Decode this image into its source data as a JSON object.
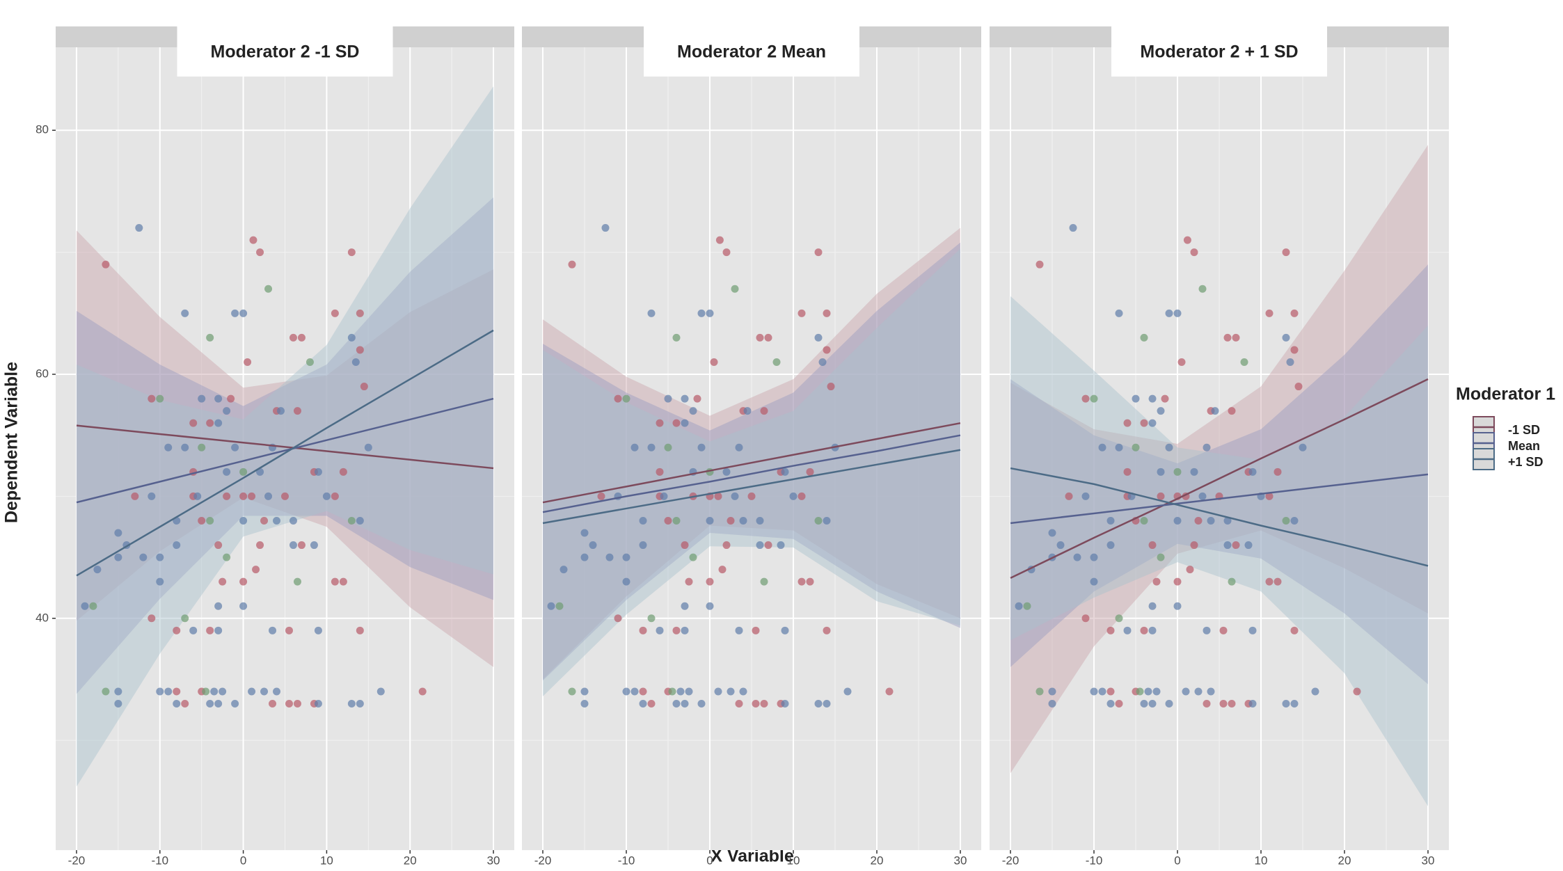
{
  "chart_data": {
    "type": "line",
    "x_label": "X Variable",
    "y_label": "Dependent Variable",
    "legend_title": "Moderator 1",
    "xlim": [
      -22.5,
      32.5
    ],
    "xticks": [
      -20,
      -10,
      0,
      10,
      20,
      30
    ],
    "ylim": [
      21,
      86.8
    ],
    "yticks": [
      40,
      60,
      80
    ],
    "grid": true,
    "x": [
      -20,
      -10,
      0,
      10,
      20,
      30
    ],
    "points": [
      {
        "color": "#b85a68",
        "x": [
          1.2,
          2,
          13,
          -16.5,
          11,
          14,
          6,
          7,
          14,
          0.5,
          14.5,
          -11,
          -1.5,
          4,
          6.5,
          -4,
          -6,
          -6,
          8.5,
          12,
          -13,
          -6,
          -2,
          0,
          1,
          5,
          11,
          -5,
          2.5,
          -3,
          2,
          7,
          1.5,
          -2.5,
          0,
          11,
          12,
          -11,
          -8,
          -4,
          5.5,
          14,
          -8,
          -5,
          21.5,
          -7,
          3.5,
          5.5,
          6.5,
          8.5
        ],
        "y": [
          71,
          70,
          70,
          69,
          65,
          65,
          63,
          63,
          62,
          61,
          59,
          58,
          58,
          57,
          57,
          56,
          56,
          52,
          52,
          52,
          50,
          50,
          50,
          50,
          50,
          50,
          50,
          48,
          48,
          46,
          46,
          46,
          44,
          43,
          43,
          43,
          43,
          40,
          39,
          39,
          39,
          39,
          34,
          34,
          34,
          33,
          33,
          33,
          33,
          33
        ]
      },
      {
        "color": "#5f7eaa",
        "x": [
          -12.5,
          -7,
          0,
          -1,
          13,
          13.5,
          -5,
          -3,
          4.5,
          -2,
          -3,
          -9,
          -7,
          -1,
          3.5,
          15,
          2,
          -2,
          9,
          -11,
          -5.5,
          3,
          10,
          -8,
          0,
          4,
          6,
          14,
          -15,
          -14,
          -8,
          6,
          8.5,
          -15,
          -12,
          -10,
          -17.5,
          -10,
          -19,
          -3,
          0,
          -6,
          -3,
          3.5,
          9,
          -15,
          -10,
          -9,
          -3.5,
          -2.5,
          1,
          2.5,
          4,
          16.5,
          -15,
          -8,
          -4,
          -3,
          -1,
          9,
          13,
          14
        ],
        "y": [
          72,
          65,
          65,
          65,
          63,
          61,
          58,
          58,
          57,
          57,
          56,
          54,
          54,
          54,
          54,
          54,
          52,
          52,
          52,
          50,
          50,
          50,
          50,
          48,
          48,
          48,
          48,
          48,
          47,
          46,
          46,
          46,
          46,
          45,
          45,
          45,
          44,
          43,
          41,
          41,
          41,
          39,
          39,
          39,
          39,
          34,
          34,
          34,
          34,
          34,
          34,
          34,
          34,
          34,
          33,
          33,
          33,
          33,
          33,
          33,
          33,
          33
        ]
      },
      {
        "color": "#6f9c72",
        "x": [
          3,
          -4,
          8,
          -10,
          -5,
          0,
          -4,
          13,
          -2,
          6.5,
          -18,
          -7,
          -16.5,
          -4.5
        ],
        "y": [
          67,
          63,
          61,
          58,
          54,
          52,
          48,
          48,
          45,
          43,
          41,
          40,
          34,
          34
        ]
      }
    ],
    "panels": [
      {
        "title": "Moderator 2 -1 SD",
        "series": [
          {
            "name": "-1 SD",
            "color": "#7d4a5c",
            "fill": "#c9a3ab",
            "values": [
              55.8,
              55.1,
              54.4,
              53.7,
              53.0,
              52.3
            ],
            "upper": [
              71.8,
              64.7,
              58.9,
              59.9,
              65.1,
              68.6
            ],
            "lower": [
              39.8,
              45.5,
              49.9,
              47.5,
              40.9,
              36.0
            ]
          },
          {
            "name": "Mean",
            "color": "#56618f",
            "fill": "#9a9cc0",
            "values": [
              49.5,
              51.2,
              52.9,
              54.6,
              56.3,
              58.0
            ],
            "upper": [
              65.2,
              60.8,
              57.4,
              60.8,
              68.4,
              74.5
            ],
            "lower": [
              33.8,
              41.6,
              48.4,
              48.4,
              44.2,
              41.5
            ]
          },
          {
            "name": "+1 SD",
            "color": "#4c6b86",
            "fill": "#a9c1cd",
            "values": [
              43.5,
              47.5,
              51.5,
              55.6,
              59.6,
              63.6
            ],
            "upper": [
              60.8,
              57.9,
              56.3,
              62.4,
              73.6,
              83.6
            ],
            "lower": [
              26.2,
              37.1,
              46.7,
              48.8,
              45.6,
              43.6
            ]
          }
        ]
      },
      {
        "title": "Moderator 2 Mean",
        "series": [
          {
            "name": "-1 SD",
            "color": "#7d4a5c",
            "fill": "#c9a3ab",
            "values": [
              49.5,
              50.8,
              52.1,
              53.4,
              54.7,
              56.0
            ],
            "upper": [
              64.5,
              59.8,
              56.6,
              59.6,
              66.6,
              72.0
            ],
            "lower": [
              35.0,
              41.8,
              47.6,
              47.2,
              42.8,
              40.0
            ]
          },
          {
            "name": "Mean",
            "color": "#56618f",
            "fill": "#9a9cc0",
            "values": [
              48.7,
              50.0,
              51.2,
              52.5,
              53.7,
              55.0
            ],
            "upper": [
              62.5,
              58.5,
              55.4,
              58.5,
              65.2,
              70.8
            ],
            "lower": [
              34.9,
              41.5,
              47.0,
              46.5,
              42.2,
              39.2
            ]
          },
          {
            "name": "+1 SD",
            "color": "#4c6b86",
            "fill": "#a9c1cd",
            "values": [
              47.8,
              49.0,
              50.2,
              51.4,
              52.6,
              53.8
            ],
            "upper": [
              62.0,
              57.7,
              54.5,
              57.0,
              63.8,
              70.3
            ],
            "lower": [
              33.6,
              40.3,
              45.9,
              45.8,
              41.4,
              39.4
            ]
          }
        ]
      },
      {
        "title": "Moderator 2 + 1 SD",
        "series": [
          {
            "name": "-1 SD",
            "color": "#7d4a5c",
            "fill": "#c9a3ab",
            "values": [
              43.3,
              46.6,
              49.8,
              53.1,
              56.3,
              59.6
            ],
            "upper": [
              59.3,
              55.5,
              54.3,
              59.0,
              68.5,
              78.8
            ],
            "lower": [
              27.3,
              37.7,
              45.3,
              47.2,
              44.1,
              40.4
            ]
          },
          {
            "name": "Mean",
            "color": "#56618f",
            "fill": "#9a9cc0",
            "values": [
              47.8,
              48.6,
              49.4,
              50.2,
              51.0,
              51.8
            ],
            "upper": [
              59.6,
              55.0,
              52.7,
              55.5,
              61.6,
              69.0
            ],
            "lower": [
              36.0,
              42.2,
              46.1,
              44.9,
              40.4,
              34.6
            ]
          },
          {
            "name": "+1 SD",
            "color": "#4c6b86",
            "fill": "#a9c1cd",
            "values": [
              52.3,
              51.0,
              49.3,
              47.6,
              46.0,
              44.3
            ],
            "upper": [
              66.4,
              60.3,
              54.0,
              53.0,
              56.5,
              64.0
            ],
            "lower": [
              38.2,
              41.7,
              44.6,
              42.2,
              35.5,
              24.6
            ]
          }
        ]
      }
    ]
  }
}
